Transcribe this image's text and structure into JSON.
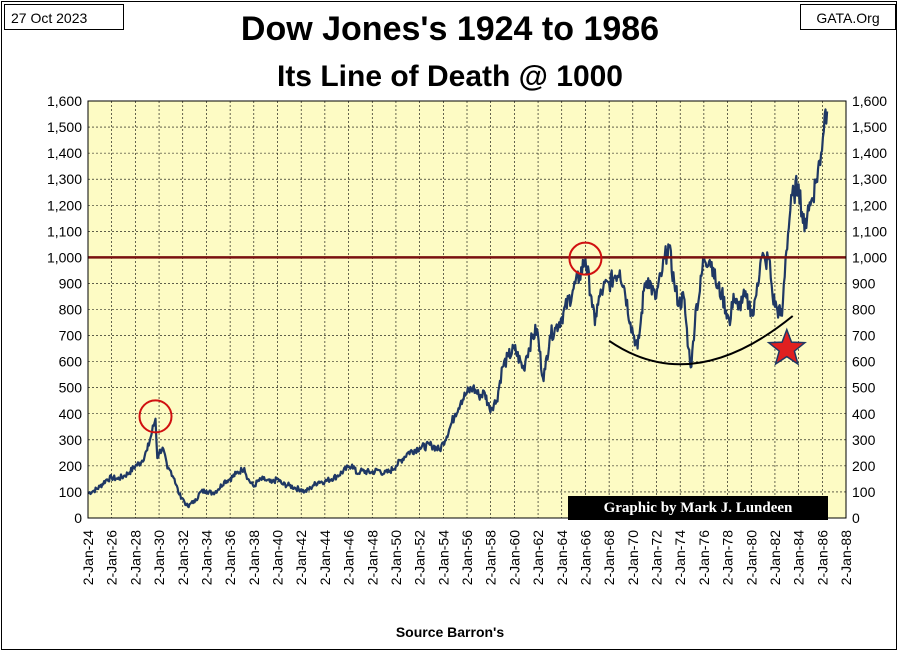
{
  "header": {
    "date": "27 Oct 2023",
    "site": "GATA.Org",
    "title": "Dow Jones's 1924 to 1986",
    "subtitle": "Its Line of Death @ 1000"
  },
  "credit": "Graphic by Mark J. Lundeen",
  "source": "Source Barron's",
  "colors": {
    "plot_background": "#fdfbc4",
    "series_line": "#1f3864",
    "reference_line": "#7a1010",
    "circle": "#d01010",
    "star": "#e02020",
    "curve": "#000000"
  },
  "chart_data": {
    "type": "line",
    "title": "Dow Jones's 1924 to 1986",
    "subtitle": "Its Line of Death @ 1000",
    "xlabel": "",
    "ylabel": "",
    "xlim": [
      1924,
      1988
    ],
    "ylim": [
      0,
      1600
    ],
    "y_ticks": [
      0,
      100,
      200,
      300,
      400,
      500,
      600,
      700,
      800,
      900,
      1000,
      1100,
      1200,
      1300,
      1400,
      1500,
      1600
    ],
    "y_tick_labels": [
      "0",
      "100",
      "200",
      "300",
      "400",
      "500",
      "600",
      "700",
      "800",
      "900",
      "1,000",
      "1,100",
      "1,200",
      "1,300",
      "1,400",
      "1,500",
      "1,600"
    ],
    "x_ticks": [
      1924,
      1926,
      1928,
      1930,
      1932,
      1934,
      1936,
      1938,
      1940,
      1942,
      1944,
      1946,
      1948,
      1950,
      1952,
      1954,
      1956,
      1958,
      1960,
      1962,
      1964,
      1966,
      1968,
      1970,
      1972,
      1974,
      1976,
      1978,
      1980,
      1982,
      1984,
      1986,
      1988
    ],
    "x_tick_labels": [
      "2-Jan-24",
      "2-Jan-26",
      "2-Jan-28",
      "2-Jan-30",
      "2-Jan-32",
      "2-Jan-34",
      "2-Jan-36",
      "2-Jan-38",
      "2-Jan-40",
      "2-Jan-42",
      "2-Jan-44",
      "2-Jan-46",
      "2-Jan-48",
      "2-Jan-50",
      "2-Jan-52",
      "2-Jan-54",
      "2-Jan-56",
      "2-Jan-58",
      "2-Jan-60",
      "2-Jan-62",
      "2-Jan-64",
      "2-Jan-66",
      "2-Jan-68",
      "2-Jan-70",
      "2-Jan-72",
      "2-Jan-74",
      "2-Jan-76",
      "2-Jan-78",
      "2-Jan-80",
      "2-Jan-82",
      "2-Jan-84",
      "2-Jan-86",
      "2-Jan-88"
    ],
    "grid": true,
    "dual_y_axis": true,
    "series": [
      {
        "x": [
          1924.0,
          1924.5,
          1925.0,
          1925.5,
          1926.0,
          1926.5,
          1927.0,
          1927.5,
          1928.0,
          1928.5,
          1929.0,
          1929.4,
          1929.7,
          1929.85,
          1930.0,
          1930.3,
          1930.7,
          1931.0,
          1931.3,
          1931.7,
          1932.0,
          1932.3,
          1932.5,
          1932.8,
          1933.0,
          1933.5,
          1934.0,
          1934.5,
          1935.0,
          1935.5,
          1936.0,
          1936.5,
          1937.0,
          1937.2,
          1937.5,
          1938.0,
          1938.3,
          1938.8,
          1939.0,
          1939.5,
          1940.0,
          1940.4,
          1941.0,
          1941.5,
          1942.0,
          1942.3,
          1942.8,
          1943.0,
          1943.5,
          1944.0,
          1945.0,
          1946.0,
          1946.3,
          1946.7,
          1947.0,
          1948.0,
          1948.5,
          1949.0,
          1949.5,
          1950.0,
          1951.0,
          1952.0,
          1953.0,
          1953.7,
          1954.0,
          1954.5,
          1955.0,
          1955.5,
          1956.0,
          1956.5,
          1957.0,
          1957.5,
          1957.9,
          1958.5,
          1959.0,
          1959.5,
          1960.0,
          1960.8,
          1961.0,
          1961.5,
          1961.9,
          1962.4,
          1962.6,
          1963.0,
          1963.5,
          1964.0,
          1965.0,
          1965.5,
          1966.0,
          1966.5,
          1966.8,
          1967.0,
          1967.5,
          1968.0,
          1968.5,
          1968.9,
          1969.3,
          1969.8,
          1970.4,
          1970.6,
          1971.0,
          1971.3,
          1971.9,
          1972.5,
          1972.9,
          1973.0,
          1973.5,
          1973.9,
          1974.3,
          1974.7,
          1974.95,
          1975.3,
          1975.6,
          1976.0,
          1976.5,
          1976.8,
          1977.0,
          1977.5,
          1978.0,
          1978.2,
          1978.5,
          1978.9,
          1979.3,
          1979.8,
          1980.2,
          1980.5,
          1980.9,
          1981.2,
          1981.5,
          1981.8,
          1982.2,
          1982.6,
          1982.9,
          1983.3,
          1983.6,
          1984.0,
          1984.5,
          1984.8,
          1985.0,
          1985.5,
          1985.9,
          1986.2,
          1986.4
        ],
        "y": [
          95,
          105,
          120,
          145,
          155,
          150,
          160,
          175,
          200,
          215,
          260,
          330,
          381,
          230,
          250,
          270,
          190,
          180,
          150,
          90,
          75,
          50,
          42,
          65,
          60,
          100,
          105,
          95,
          110,
          140,
          150,
          170,
          185,
          192,
          150,
          120,
          140,
          150,
          145,
          135,
          150,
          130,
          125,
          115,
          110,
          100,
          115,
          125,
          140,
          140,
          160,
          195,
          205,
          170,
          180,
          175,
          185,
          170,
          180,
          200,
          250,
          270,
          280,
          260,
          290,
          340,
          400,
          450,
          480,
          500,
          470,
          480,
          420,
          450,
          580,
          620,
          650,
          570,
          620,
          690,
          725,
          540,
          570,
          700,
          730,
          770,
          880,
          930,
          995,
          850,
          740,
          820,
          880,
          900,
          930,
          950,
          880,
          750,
          650,
          720,
          900,
          920,
          840,
          950,
          1030,
          1050,
          900,
          820,
          850,
          650,
          580,
          800,
          850,
          1000,
          990,
          960,
          900,
          860,
          780,
          740,
          860,
          800,
          850,
          820,
          780,
          900,
          1000,
          980,
          1000,
          850,
          800,
          776,
          1000,
          1180,
          1250,
          1280,
          1100,
          1200,
          1200,
          1300,
          1400,
          1550,
          1560
        ]
      }
    ],
    "reference_line": {
      "y": 1000
    },
    "annotations": [
      {
        "type": "circle",
        "x": 1929.7,
        "y": 390
      },
      {
        "type": "circle",
        "x": 1966.0,
        "y": 995
      },
      {
        "type": "curve",
        "points": [
          [
            1968.0,
            680
          ],
          [
            1975.0,
            530
          ],
          [
            1983.5,
            775
          ]
        ]
      },
      {
        "type": "star",
        "x": 1983.0,
        "y": 650
      }
    ]
  }
}
